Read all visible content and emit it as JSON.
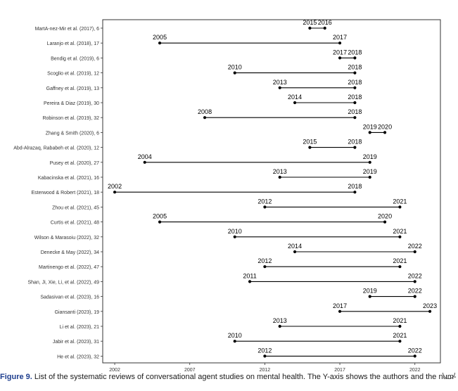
{
  "chart_data": {
    "type": "range",
    "x_ticks": [
      "2002",
      "2007",
      "2012",
      "2017",
      "2022"
    ],
    "xlim": [
      2001.2,
      2023.7
    ],
    "grid": false,
    "legend": "none",
    "series": [
      {
        "label": "MartA-nez-Mir  et al. (2017), 6",
        "start": 2015,
        "end": 2016
      },
      {
        "label": "Laranjo  et al. (2018), 17",
        "start": 2005,
        "end": 2017
      },
      {
        "label": "Bendig  et al. (2019), 6",
        "start": 2017,
        "end": 2018
      },
      {
        "label": "Scoglio  et al. (2019), 12",
        "start": 2010,
        "end": 2018
      },
      {
        "label": "Gaffney  et al. (2019), 13",
        "start": 2013,
        "end": 2018
      },
      {
        "label": "Pereira & Diaz (2019), 30",
        "start": 2014,
        "end": 2018
      },
      {
        "label": "Robinson  et al. (2019), 32",
        "start": 2008,
        "end": 2018
      },
      {
        "label": "Zhang & Smith (2020), 6",
        "start": 2019,
        "end": 2020
      },
      {
        "label": "Abd-Alrazaq, Rababeh et al. (2020), 12",
        "start": 2015,
        "end": 2018
      },
      {
        "label": "Pusey  et al. (2020), 27",
        "start": 2004,
        "end": 2019
      },
      {
        "label": "Kabacinska  et al. (2021), 16",
        "start": 2013,
        "end": 2019
      },
      {
        "label": "Esterwood & Robert (2021), 18",
        "start": 2002,
        "end": 2018
      },
      {
        "label": "Zhou  et al. (2021), 45",
        "start": 2012,
        "end": 2021
      },
      {
        "label": "Curtis  et al. (2021), 48",
        "start": 2005,
        "end": 2020
      },
      {
        "label": "Wilson & Marasoiu (2022), 32",
        "start": 2010,
        "end": 2021
      },
      {
        "label": "Denecke & May (2022), 34",
        "start": 2014,
        "end": 2022
      },
      {
        "label": "Martinengo  et al. (2022), 47",
        "start": 2012,
        "end": 2021
      },
      {
        "label": "Shan, Ji, Xie, Li, et al. (2022), 49",
        "start": 2011,
        "end": 2022
      },
      {
        "label": "Sadasivan  et al. (2023), 16",
        "start": 2019,
        "end": 2022
      },
      {
        "label": "Giansanti (2023), 19",
        "start": 2017,
        "end": 2023
      },
      {
        "label": "Li  et al. (2023), 21",
        "start": 2013,
        "end": 2021
      },
      {
        "label": "Jabir  et al. (2023), 31",
        "start": 2010,
        "end": 2021
      },
      {
        "label": "He  et al. (2023), 32",
        "start": 2012,
        "end": 2022
      }
    ]
  },
  "caption": {
    "label": "Figure 9.",
    "text": " List of the systematic reviews of conversational agent studies on mental health. The Y-axis shows the authors and the num-"
  }
}
